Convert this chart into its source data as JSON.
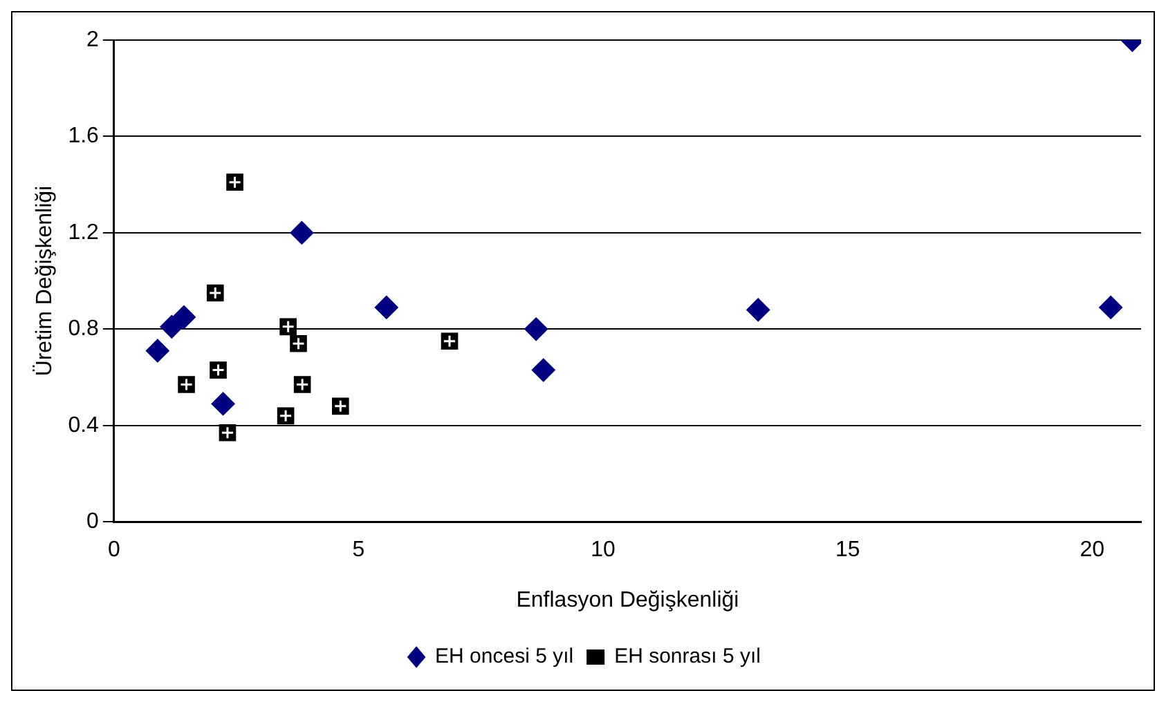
{
  "chart_data": {
    "type": "scatter",
    "xlabel": "Enflasyon Değişkenliği",
    "ylabel": "Üretim Değişkenliği",
    "xlim": [
      0,
      21
    ],
    "xticks": [
      0,
      5,
      10,
      15,
      20
    ],
    "ylim": [
      0,
      2
    ],
    "yticks": [
      0,
      0.4,
      0.8,
      1.2,
      1.6,
      2
    ],
    "grid": "y",
    "legend": "bottom",
    "series": [
      {
        "name": "EH oncesi 5 yıl",
        "color": "#000080",
        "marker": "diamond",
        "x": [
          0.89,
          1.18,
          1.43,
          2.23,
          3.84,
          5.57,
          8.63,
          8.78,
          13.17,
          20.38,
          20.82
        ],
        "values": [
          0.71,
          0.81,
          0.85,
          0.49,
          1.2,
          0.89,
          0.8,
          0.63,
          0.88,
          0.89,
          2.0
        ]
      },
      {
        "name": "EH sonrası 5 yıl",
        "color": "#000000",
        "marker": "square",
        "x": [
          2.47,
          2.07,
          3.56,
          3.77,
          2.13,
          1.48,
          3.85,
          3.51,
          2.32,
          4.63,
          6.86
        ],
        "values": [
          1.41,
          0.95,
          0.81,
          0.74,
          0.63,
          0.57,
          0.57,
          0.44,
          0.37,
          0.48,
          0.75
        ]
      }
    ]
  }
}
